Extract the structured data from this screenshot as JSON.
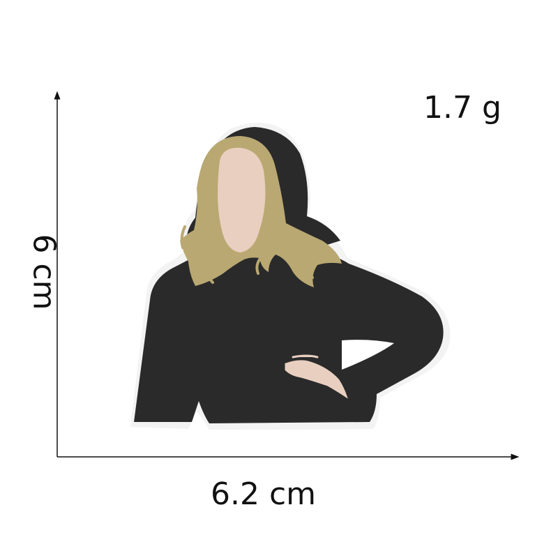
{
  "dimensions": {
    "width_label": "6.2 cm",
    "height_label": "6 cm",
    "weight_label": "1.7 g"
  },
  "patch": {
    "subject": "embroidered patch of a woman with long blonde hair wearing a black top, hand on hip",
    "colors": {
      "top": "#2a2a2a",
      "hair": "#b9a872",
      "skin": "#e8cfc0",
      "backing": "#f3f3f3"
    }
  },
  "colors": {
    "background": "#ffffff",
    "arrow": "#111111",
    "text": "#111111"
  }
}
